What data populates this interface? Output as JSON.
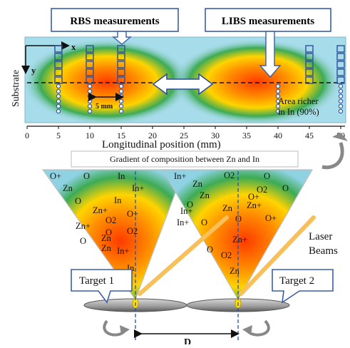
{
  "labels": {
    "rbs": "RBS measurements",
    "libs": "LIBS measurements",
    "x_axis": "x",
    "y_axis": "y",
    "substrate": "Substrate",
    "five_mm": "5 mm",
    "area_richer_line1": "Area richer",
    "area_richer_line2": "in In (90%)",
    "longitudinal": "Longitudinal position (mm)",
    "gradient": "Gradient of composition between Zn and In",
    "laser_line1": "Laser",
    "laser_line2": "Beams",
    "target1": "Target 1",
    "target2": "Target 2",
    "distance": "D"
  },
  "ticks": [
    "0",
    "5",
    "10",
    "15",
    "20",
    "25",
    "30",
    "35",
    "40",
    "45",
    "50"
  ],
  "plume1_species": [
    "O+",
    "O",
    "In",
    "Zn",
    "In+",
    "In",
    "O",
    "O+",
    "Zn+",
    "O2",
    "Zn+",
    "O",
    "O2",
    "Zn",
    "O",
    "Zn",
    "In+",
    "In"
  ],
  "plume2_species": [
    "In+",
    "O2",
    "O",
    "Zn",
    "O2",
    "O",
    "Zn",
    "O+",
    "O",
    "Zn+",
    "In+",
    "Zn",
    "In+",
    "O",
    "O",
    "O+",
    "Zn+",
    "O2",
    "Zn",
    "O"
  ],
  "colors": {
    "background_blue": "#9fd7e8",
    "hot_core": "#ff3a00",
    "mid_yellow": "#ffd400",
    "edge_green": "#2aa05a",
    "square_blue": "#2d4f9a",
    "laser": "#f7c05a",
    "callout_border": "#3a5ea8"
  }
}
